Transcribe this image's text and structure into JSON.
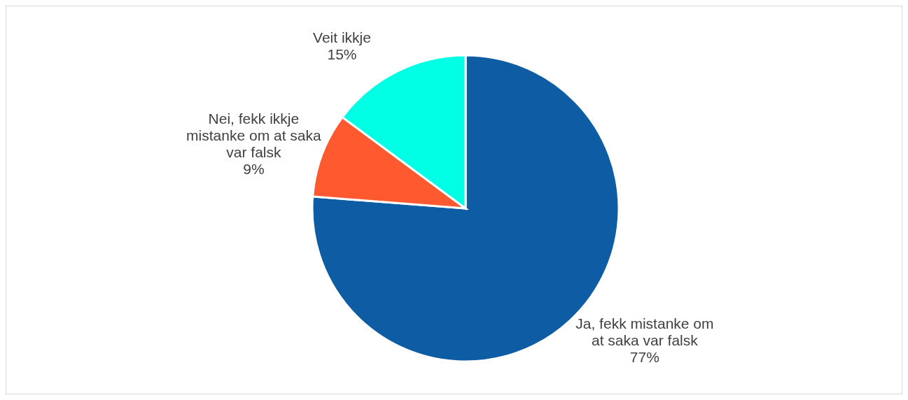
{
  "chart_data": {
    "type": "pie",
    "categories": [
      "Ja, fekk mistanke om at saka var falsk",
      "Nei, fekk ikkje mistanke om at saka var falsk",
      "Veit ikkje"
    ],
    "values": [
      77,
      9,
      15
    ],
    "colors": [
      "#0e5ca3",
      "#ff5a2f",
      "#00ffe5"
    ],
    "value_labels": [
      "77%",
      "9%",
      "15%"
    ],
    "legend": false
  }
}
